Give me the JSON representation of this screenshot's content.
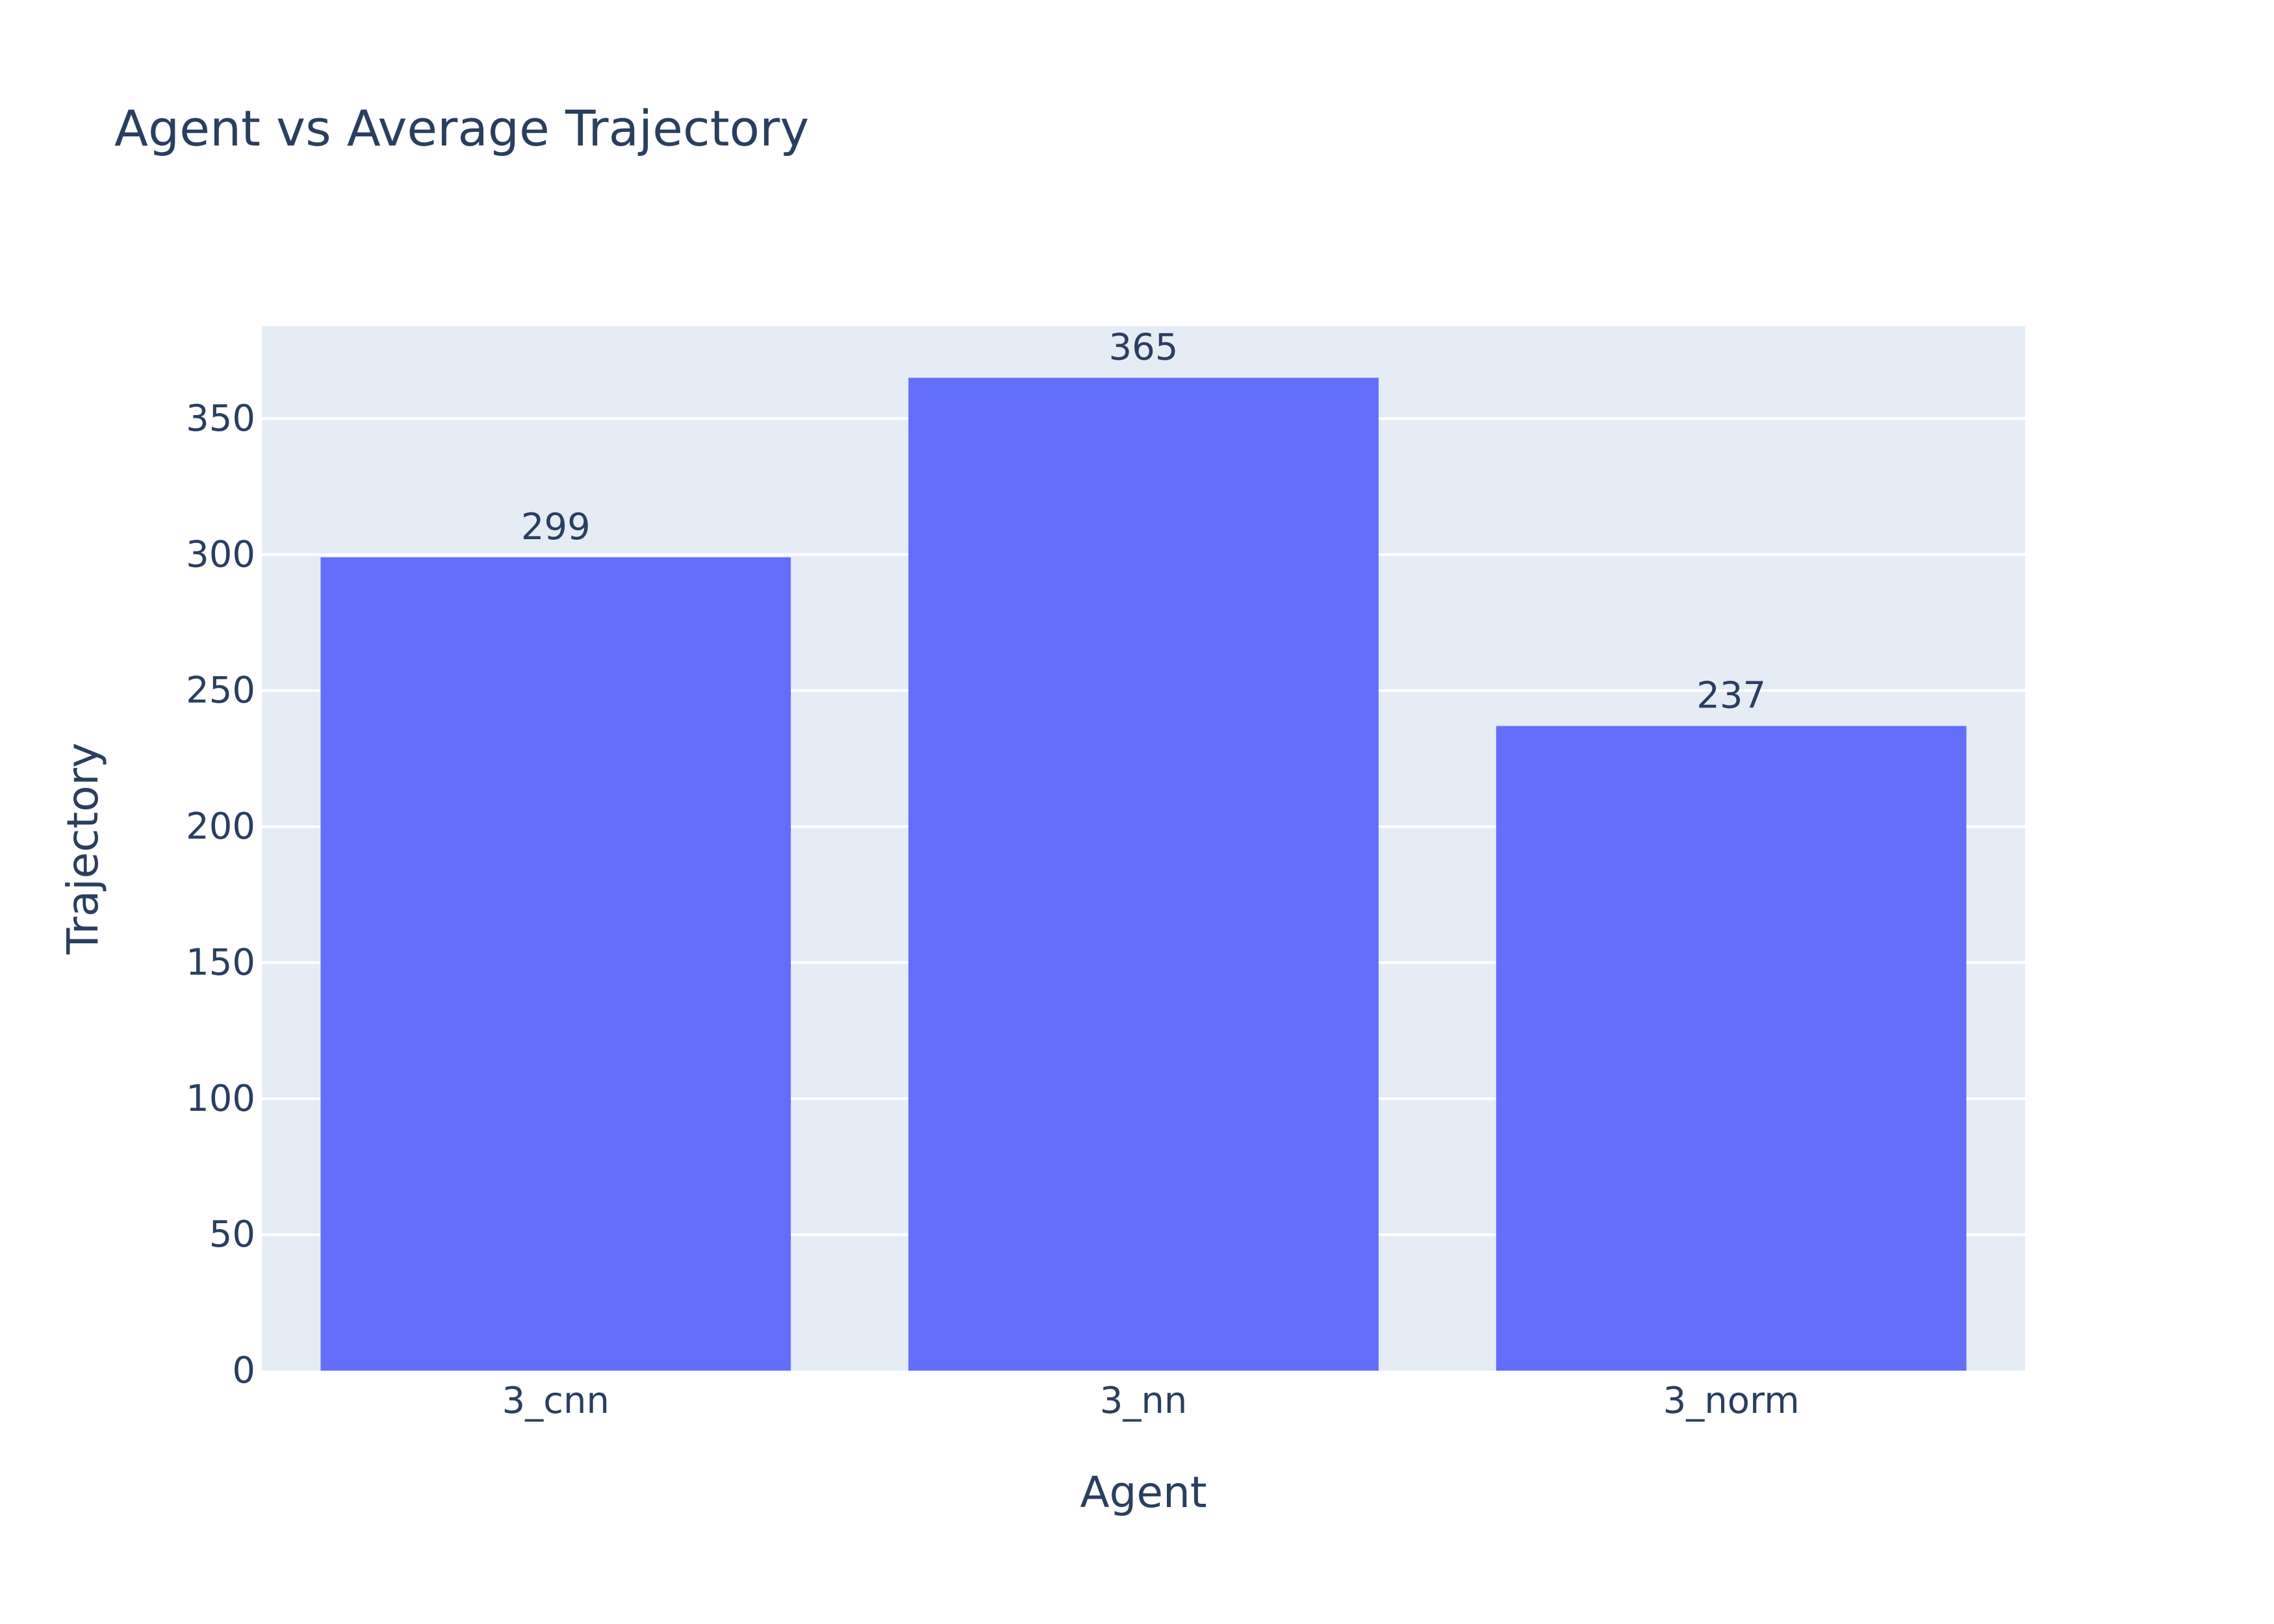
{
  "chart_data": {
    "type": "bar",
    "title": "Agent vs Average Trajectory",
    "xlabel": "Agent",
    "ylabel": "Trajectory",
    "categories": [
      "3_cnn",
      "3_nn",
      "3_norm"
    ],
    "values": [
      299,
      365,
      237
    ],
    "data_labels": [
      "299",
      "365",
      "237"
    ],
    "ylim": [
      0,
      384
    ],
    "yticks": [
      0,
      50,
      100,
      150,
      200,
      250,
      300,
      350
    ],
    "grid": true,
    "legend": "none"
  },
  "colors": {
    "bar": "#636efa",
    "plot_background": "#e5ecf6",
    "gridline": "#ffffff",
    "text": "#2a3f5f"
  }
}
